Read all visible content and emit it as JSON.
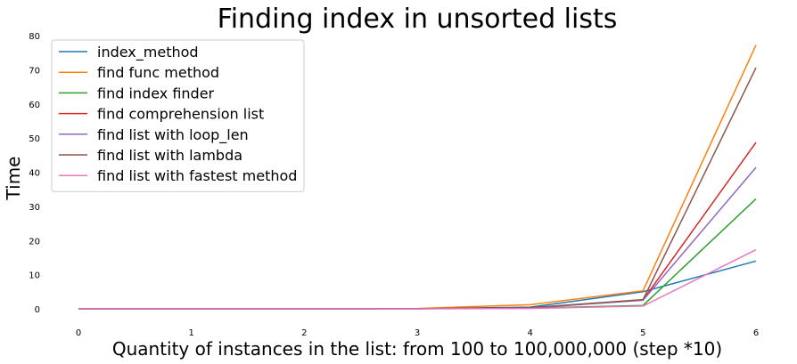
{
  "chart_data": {
    "type": "line",
    "title": "Finding index in unsorted lists",
    "xlabel": "Quantity of instances in the list: from 100 to 100,000,000 (step *10)",
    "ylabel": "Time",
    "x": [
      0,
      1,
      2,
      3,
      4,
      5,
      6
    ],
    "xlim": [
      0,
      6
    ],
    "ylim": [
      0,
      80
    ],
    "xticks": [
      "0",
      "1",
      "2",
      "3",
      "4",
      "5",
      "6"
    ],
    "yticks": [
      "0",
      "10",
      "20",
      "30",
      "40",
      "50",
      "60",
      "70",
      "80"
    ],
    "grid": false,
    "legend_position": "top-left",
    "series": [
      {
        "name": "index_method",
        "color": "#1f77b4",
        "values": [
          0,
          0,
          0,
          0.05,
          0.5,
          5.0,
          14.0
        ]
      },
      {
        "name": "find func method",
        "color": "#ff7f0e",
        "values": [
          0,
          0,
          0,
          0.1,
          1.2,
          5.3,
          77.2
        ]
      },
      {
        "name": "find index finder",
        "color": "#2ca02c",
        "values": [
          0,
          0,
          0,
          0.02,
          0.2,
          1.0,
          32.2
        ]
      },
      {
        "name": "find comprehension list",
        "color": "#d62728",
        "values": [
          0,
          0,
          0,
          0.03,
          0.25,
          2.6,
          48.7
        ]
      },
      {
        "name": "find list with loop_len",
        "color": "#9467bd",
        "values": [
          0,
          0,
          0,
          0.03,
          0.25,
          2.5,
          41.4
        ]
      },
      {
        "name": "find list with lambda",
        "color": "#8c564b",
        "values": [
          0,
          0,
          0,
          0.03,
          0.3,
          2.7,
          70.6
        ]
      },
      {
        "name": "find list with fastest method",
        "color": "#e377c2",
        "values": [
          0,
          0,
          0,
          0.01,
          0.1,
          0.8,
          17.3
        ]
      }
    ]
  }
}
